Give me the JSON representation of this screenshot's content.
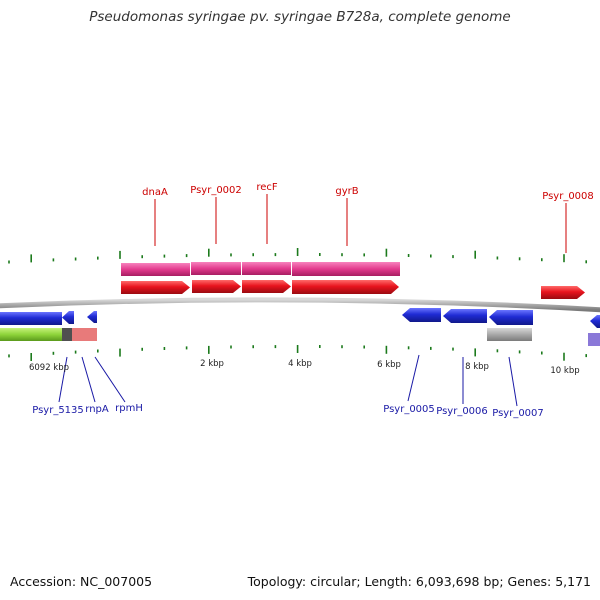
{
  "title": "Pseudomonas syringae pv. syringae B728a, complete genome",
  "footer": {
    "accession": "Accession: NC_007005",
    "summary": "Topology: circular; Length: 6,093,698 bp; Genes: 5,171"
  },
  "colors": {
    "forward_gene": "#e8141e",
    "reverse_gene": "#1f2bd4",
    "forward_cds_track": "#ea3c8f",
    "backbone": "#8c8c8c",
    "tick": "#1c7a1c",
    "label_forward": "#cc0000",
    "label_reverse": "#1a1aa6",
    "rna_green": "#8ed43a",
    "rna_pink": "#e87a7a",
    "misc_gray": "#b9b9b9",
    "misc_purple": "#8a78d8"
  },
  "scale_labels": [
    "6092 kbp",
    "2 kbp",
    "4 kbp",
    "6 kbp",
    "8 kbp",
    "10 kbp"
  ],
  "top_genes": [
    "dnaA",
    "Psyr_0002",
    "recF",
    "gyrB",
    "Psyr_0008"
  ],
  "bottom_genes": [
    "Psyr_5135",
    "rnpA",
    "rpmH",
    "Psyr_0005",
    "Psyr_0006",
    "Psyr_0007"
  ]
}
